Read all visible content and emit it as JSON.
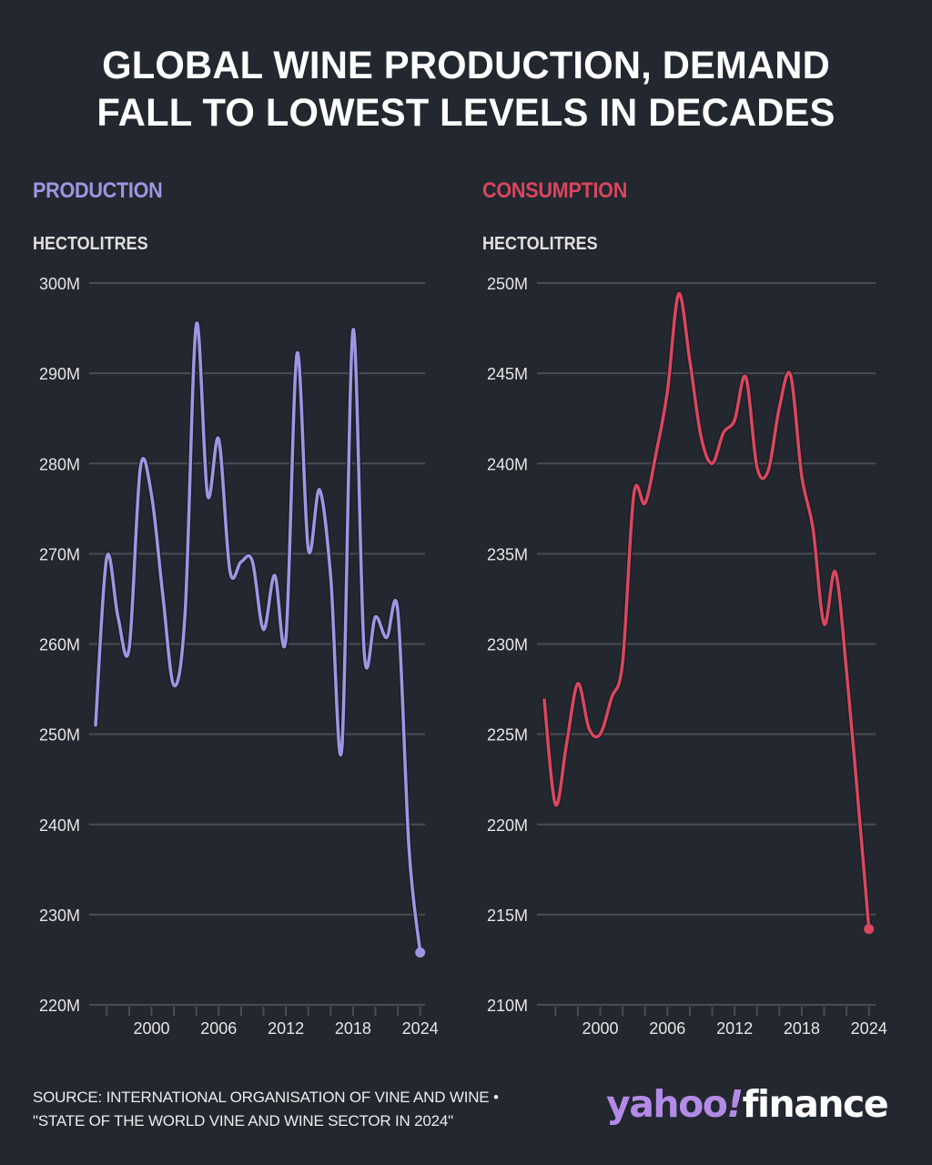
{
  "title": {
    "line1": "GLOBAL WINE PRODUCTION, DEMAND",
    "line2": "FALL TO LOWEST LEVELS IN DECADES"
  },
  "footer": {
    "source_line1": "SOURCE: INTERNATIONAL ORGANISATION OF VINE AND WINE •",
    "source_line2": "\"STATE OF THE WORLD VINE AND WINE SECTOR IN 2024\"",
    "logo_yahoo": "yahoo",
    "logo_bang": "!",
    "logo_finance": "finance"
  },
  "colors": {
    "background": "#23272f",
    "production": "#9b97e3",
    "consumption": "#d9475e",
    "gridline": "#4a4d53",
    "logo_purple": "#b38ae6"
  },
  "chart_data": [
    {
      "type": "line",
      "title": "PRODUCTION",
      "ylabel": "HECTOLITRES",
      "xlabel": "",
      "color": "#9b97e3",
      "x": [
        1995,
        1996,
        1997,
        1998,
        1999,
        2000,
        2001,
        2002,
        2003,
        2004,
        2005,
        2006,
        2007,
        2008,
        2009,
        2010,
        2011,
        2012,
        2013,
        2014,
        2015,
        2016,
        2017,
        2018,
        2019,
        2020,
        2021,
        2022,
        2023,
        2024
      ],
      "values": [
        251.0,
        269.6,
        263.0,
        259.5,
        279.5,
        276.5,
        265.5,
        255.4,
        263.5,
        295.4,
        276.5,
        282.7,
        268.1,
        269.1,
        269.2,
        261.6,
        267.6,
        260.6,
        292.2,
        270.5,
        277.1,
        267.5,
        248.4,
        294.8,
        259.0,
        263.0,
        260.7,
        263.6,
        237.3,
        225.8
      ],
      "unit": "M",
      "ylim": [
        220,
        300
      ],
      "yticks": [
        220,
        230,
        240,
        250,
        260,
        270,
        280,
        290,
        300
      ],
      "ytick_labels": [
        "220M",
        "230M",
        "240M",
        "250M",
        "260M",
        "270M",
        "280M",
        "290M",
        "300M"
      ],
      "xlim": [
        1995,
        2024
      ],
      "xticks_minor": [
        1996,
        1998,
        2000,
        2002,
        2004,
        2006,
        2008,
        2010,
        2012,
        2014,
        2016,
        2018,
        2020,
        2022,
        2024
      ],
      "xtick_labels": [
        {
          "year": 2000,
          "label": "2000"
        },
        {
          "year": 2006,
          "label": "2006"
        },
        {
          "year": 2012,
          "label": "2012"
        },
        {
          "year": 2018,
          "label": "2018"
        },
        {
          "year": 2024,
          "label": "2024"
        }
      ],
      "grid": true,
      "end_marker": true
    },
    {
      "type": "line",
      "title": "CONSUMPTION",
      "ylabel": "HECTOLITRES",
      "xlabel": "",
      "color": "#d9475e",
      "x": [
        1995,
        1996,
        1997,
        1998,
        1999,
        2000,
        2001,
        2002,
        2003,
        2004,
        2005,
        2006,
        2007,
        2008,
        2009,
        2010,
        2011,
        2012,
        2013,
        2014,
        2015,
        2016,
        2017,
        2018,
        2019,
        2020,
        2021,
        2022,
        2023,
        2024
      ],
      "values": [
        226.9,
        221.1,
        224.5,
        227.8,
        225.3,
        225.0,
        227.0,
        229.0,
        238.3,
        237.8,
        240.6,
        244.0,
        249.4,
        245.7,
        241.5,
        240.0,
        241.7,
        242.4,
        244.8,
        239.8,
        239.6,
        243.1,
        244.9,
        239.3,
        236.4,
        231.1,
        234.0,
        228.5,
        221.5,
        214.2
      ],
      "unit": "M",
      "ylim": [
        210,
        250
      ],
      "yticks": [
        210,
        215,
        220,
        225,
        230,
        235,
        240,
        245,
        250
      ],
      "ytick_labels": [
        "210M",
        "215M",
        "220M",
        "225M",
        "230M",
        "235M",
        "240M",
        "245M",
        "250M"
      ],
      "xlim": [
        1995,
        2024
      ],
      "xticks_minor": [
        1996,
        1998,
        2000,
        2002,
        2004,
        2006,
        2008,
        2010,
        2012,
        2014,
        2016,
        2018,
        2020,
        2022,
        2024
      ],
      "xtick_labels": [
        {
          "year": 2000,
          "label": "2000"
        },
        {
          "year": 2006,
          "label": "2006"
        },
        {
          "year": 2012,
          "label": "2012"
        },
        {
          "year": 2018,
          "label": "2018"
        },
        {
          "year": 2024,
          "label": "2024"
        }
      ],
      "grid": true,
      "end_marker": true
    }
  ]
}
